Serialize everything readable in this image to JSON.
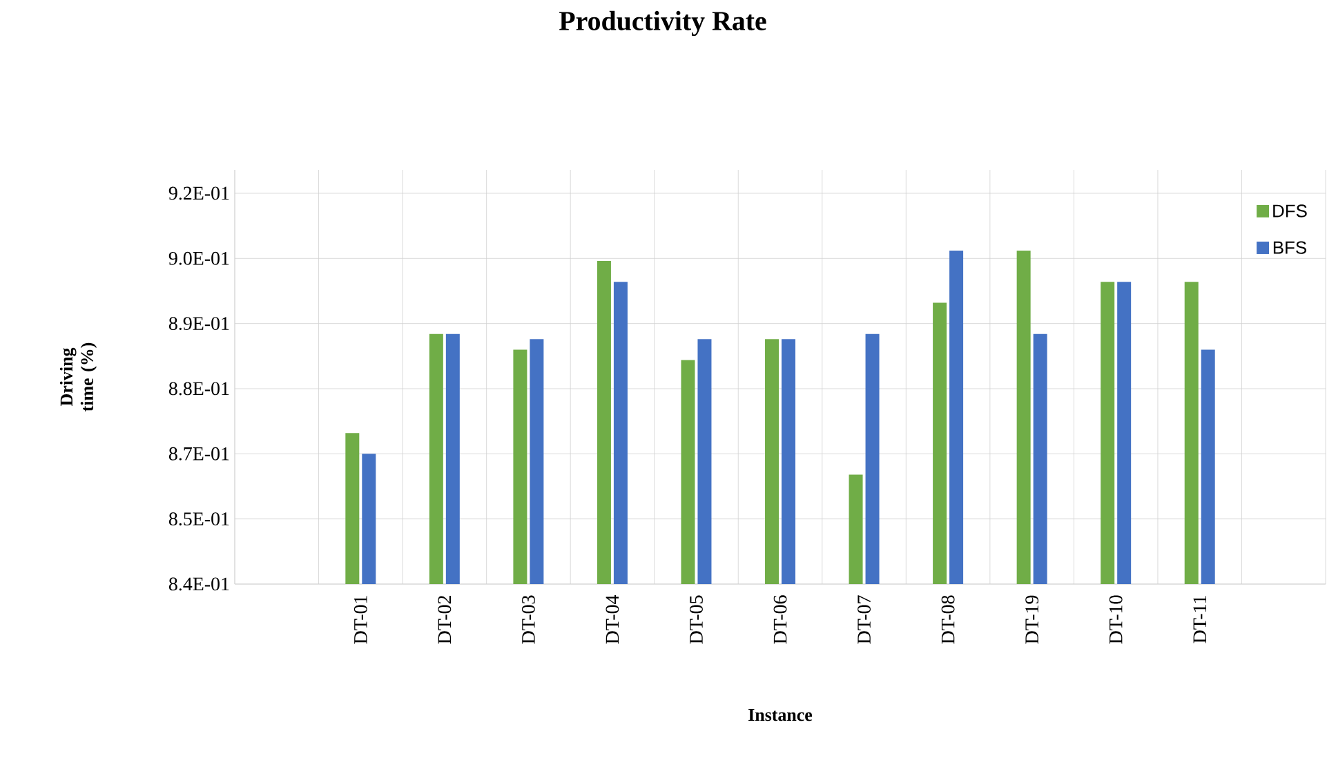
{
  "chart_data": {
    "type": "bar",
    "title": "Productivity Rate",
    "xlabel": "Instance",
    "ylabel": "Driving time (%)",
    "categories": [
      null,
      "DT-01",
      "DT-02",
      "DT-03",
      "DT-04",
      "DT-05",
      "DT-06",
      "DT-07",
      "DT-08",
      "DT-19",
      "DT-10",
      "DT-11",
      null
    ],
    "series": [
      {
        "name": "DFS",
        "color": "#70ad47",
        "values": [
          null,
          0.87,
          0.889,
          0.886,
          0.903,
          0.884,
          0.888,
          0.862,
          0.895,
          0.905,
          0.899,
          0.899,
          null
        ]
      },
      {
        "name": "BFS",
        "color": "#4472c4",
        "values": [
          null,
          0.866,
          0.889,
          0.888,
          0.899,
          0.888,
          0.888,
          0.889,
          0.905,
          0.889,
          0.899,
          0.886,
          null
        ]
      }
    ],
    "ylim": [
      0.841,
      0.9205
    ],
    "yticks": [
      {
        "value": 0.841,
        "label": "8.4E-01"
      },
      {
        "value": 0.8535,
        "label": "8.5E-01"
      },
      {
        "value": 0.866,
        "label": "8.7E-01"
      },
      {
        "value": 0.8785,
        "label": "8.8E-01"
      },
      {
        "value": 0.891,
        "label": "8.9E-01"
      },
      {
        "value": 0.9035,
        "label": "9.0E-01"
      },
      {
        "value": 0.916,
        "label": "9.2E-01"
      }
    ],
    "grid": true,
    "legend": "top right"
  }
}
